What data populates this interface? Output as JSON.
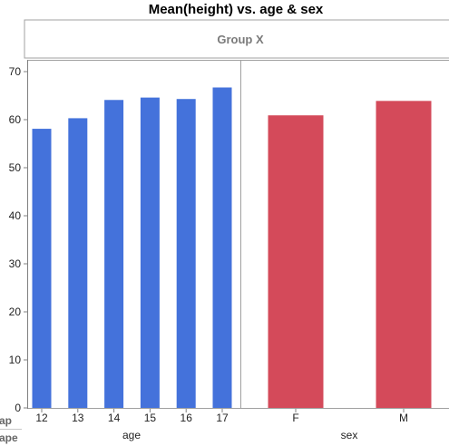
{
  "title": "Mean(height) vs. age & sex",
  "group_header": "Group X",
  "side_labels": [
    "ap",
    "ape"
  ],
  "colors": {
    "age_bars": "#4472db",
    "sex_bars": "#d44a5a",
    "frame": "#a0a0a0",
    "header_bg": "#ffffff"
  },
  "chart_data": [
    {
      "type": "bar",
      "xlabel": "age",
      "ylabel": "",
      "categories": [
        "12",
        "13",
        "14",
        "15",
        "16",
        "17"
      ],
      "values": [
        58.1,
        60.3,
        64.1,
        64.6,
        64.3,
        66.7
      ],
      "ylim": [
        0,
        72
      ],
      "yticks": [
        "0",
        "10",
        "20",
        "30",
        "40",
        "50",
        "60",
        "70"
      ],
      "grid": false
    },
    {
      "type": "bar",
      "xlabel": "sex",
      "ylabel": "",
      "categories": [
        "F",
        "M"
      ],
      "values": [
        60.9,
        63.9
      ],
      "ylim": [
        0,
        72
      ],
      "grid": false
    }
  ]
}
